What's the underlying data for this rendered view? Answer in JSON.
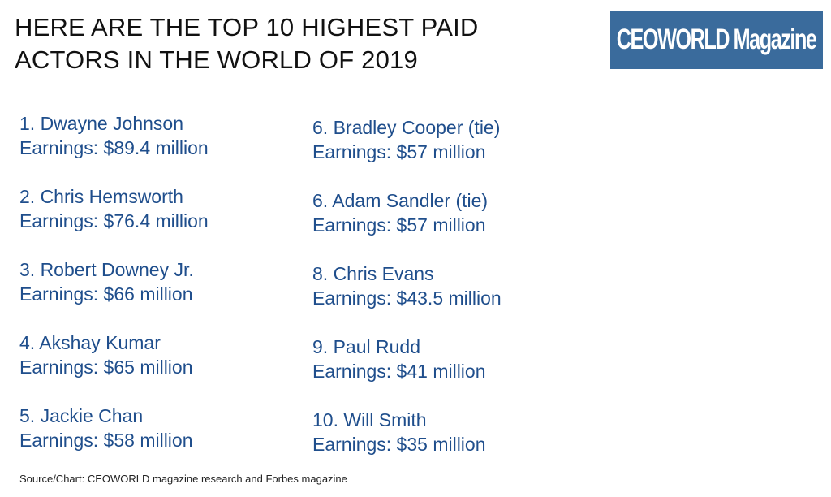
{
  "title": {
    "line1": "HERE ARE THE TOP 10 HIGHEST PAID",
    "line2": "ACTORS IN THE WORLD OF 2019"
  },
  "logo": {
    "text": "CEOWORLD Magazine",
    "background": "#3a6b9c"
  },
  "colors": {
    "entry_text": "#1f4e8c",
    "title_text": "#111111"
  },
  "left_column": [
    {
      "name": "1. Dwayne Johnson",
      "earnings": "Earnings: $89.4 million"
    },
    {
      "name": "2. Chris Hemsworth",
      "earnings": "Earnings: $76.4 million"
    },
    {
      "name": "3. Robert Downey Jr.",
      "earnings": "Earnings: $66 million"
    },
    {
      "name": "4. Akshay Kumar",
      "earnings": "Earnings: $65 million"
    },
    {
      "name": "5. Jackie Chan",
      "earnings": "Earnings: $58 million"
    }
  ],
  "right_column": [
    {
      "name": "6. Bradley Cooper (tie)",
      "earnings": "Earnings: $57 million"
    },
    {
      "name": "6. Adam Sandler (tie)",
      "earnings": "Earnings: $57 million"
    },
    {
      "name": "8. Chris Evans",
      "earnings": "Earnings: $43.5 million"
    },
    {
      "name": "9. Paul Rudd",
      "earnings": "Earnings: $41 million"
    },
    {
      "name": "10. Will Smith",
      "earnings": "Earnings: $35 million"
    }
  ],
  "source": "Source/Chart: CEOWORLD magazine research and Forbes magazine"
}
